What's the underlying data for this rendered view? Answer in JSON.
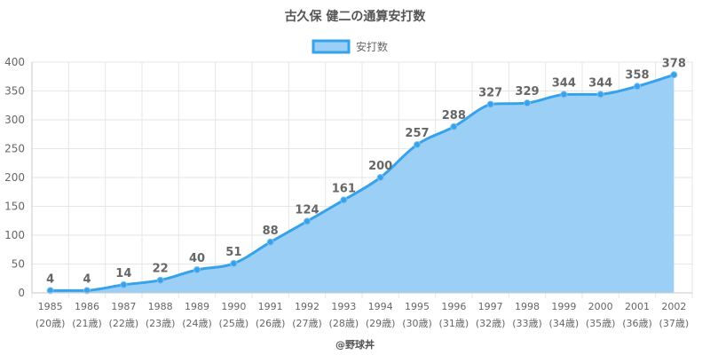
{
  "chart_data": {
    "type": "area",
    "title": "古久保 健二の通算安打数",
    "legend": {
      "label": "安打数",
      "placement": "top-center"
    },
    "categories": [
      "1985",
      "1986",
      "1987",
      "1988",
      "1989",
      "1990",
      "1991",
      "1992",
      "1993",
      "1994",
      "1995",
      "1996",
      "1997",
      "1998",
      "1999",
      "2000",
      "2001",
      "2002"
    ],
    "sublabels": [
      "(20歳)",
      "(21歳)",
      "(22歳)",
      "(23歳)",
      "(24歳)",
      "(25歳)",
      "(26歳)",
      "(27歳)",
      "(28歳)",
      "(29歳)",
      "(30歳)",
      "(31歳)",
      "(32歳)",
      "(33歳)",
      "(34歳)",
      "(35歳)",
      "(36歳)",
      "(37歳)"
    ],
    "series": [
      {
        "name": "安打数",
        "values": [
          4,
          4,
          14,
          22,
          40,
          51,
          88,
          124,
          161,
          200,
          257,
          288,
          327,
          329,
          344,
          344,
          358,
          378
        ]
      }
    ],
    "ylim": [
      0,
      400
    ],
    "yticks": [
      0,
      50,
      100,
      150,
      200,
      250,
      300,
      350,
      400
    ],
    "grid": true,
    "colors": {
      "line": "#36a2eb",
      "fill": "#9ccff5",
      "grid": "#e6e6e6"
    },
    "footer": "@野球丼"
  }
}
